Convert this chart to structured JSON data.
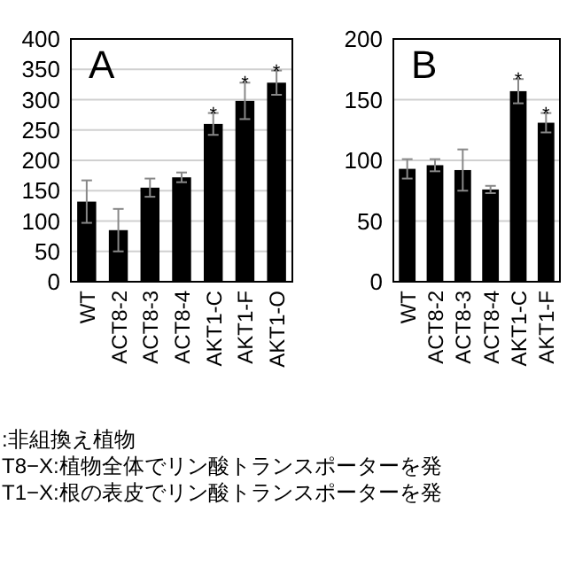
{
  "chart_data": [
    {
      "type": "bar",
      "title": "A",
      "categories": [
        "WT",
        "ACT8-2",
        "ACT8-3",
        "ACT8-4",
        "AKT1-C",
        "AKT1-F",
        "AKT1-O"
      ],
      "series": [
        {
          "color": "#000000",
          "values": [
            132,
            85,
            155,
            172,
            260,
            298,
            328
          ],
          "errors": [
            35,
            35,
            15,
            8,
            18,
            30,
            20
          ]
        }
      ],
      "ylim": [
        0,
        400
      ],
      "yticks": [
        0,
        50,
        100,
        150,
        200,
        250,
        300,
        350,
        400
      ],
      "grid": "y",
      "annotations": [
        {
          "text": "*",
          "x": "AKT1-C",
          "y": 278
        },
        {
          "text": "*",
          "x": "AKT1-F",
          "y": 328
        },
        {
          "text": "*",
          "x": "AKT1-O",
          "y": 348
        },
        ":非組換え植物",
        "T8−X:植物全体でリン酸トランスポーターを発",
        "T1−X:根の表皮でリン酸トランスポーターを発"
      ]
    },
    {
      "type": "bar",
      "title": "B",
      "categories": [
        "WT",
        "ACT8-2",
        "ACT8-3",
        "ACT8-4",
        "AKT1-C",
        "AKT1-F"
      ],
      "series": [
        {
          "color": "#000000",
          "values": [
            93,
            96,
            92,
            76,
            157,
            131
          ],
          "errors": [
            8,
            5,
            17,
            3,
            10,
            8
          ]
        }
      ],
      "ylim": [
        0,
        200
      ],
      "yticks": [
        0,
        50,
        100,
        150,
        200
      ],
      "grid": "y",
      "annotations": [
        {
          "text": "*",
          "x": "AKT1-C",
          "y": 167
        },
        {
          "text": "*",
          "x": "AKT1-F",
          "y": 139
        }
      ]
    }
  ]
}
